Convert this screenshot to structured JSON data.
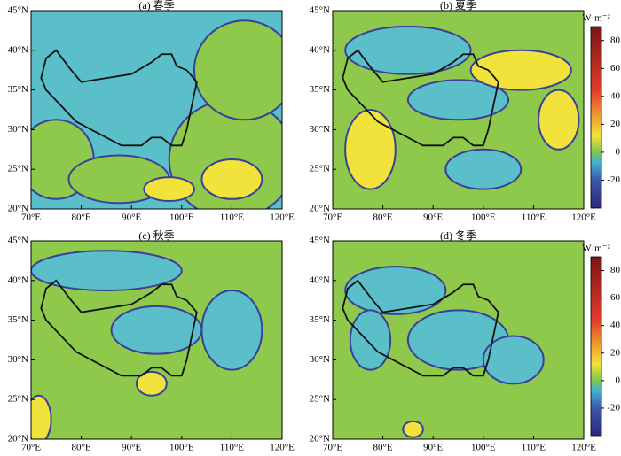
{
  "panels": [
    {
      "title": "(a) 春季"
    },
    {
      "title": "(b) 夏季"
    },
    {
      "title": "(c) 秋季"
    },
    {
      "title": "(d) 冬季"
    }
  ],
  "lon_ticks": [
    {
      "value": 70,
      "label": "70°E"
    },
    {
      "value": 80,
      "label": "80°E"
    },
    {
      "value": 90,
      "label": "90°E"
    },
    {
      "value": 100,
      "label": "100°E"
    },
    {
      "value": 110,
      "label": "110°E"
    },
    {
      "value": 120,
      "label": "120°E"
    }
  ],
  "lat_ticks": [
    {
      "value": 20,
      "label": "20°N"
    },
    {
      "value": 25,
      "label": "25°N"
    },
    {
      "value": 30,
      "label": "30°N"
    },
    {
      "value": 35,
      "label": "35°N"
    },
    {
      "value": 40,
      "label": "40°N"
    },
    {
      "value": 45,
      "label": "45°N"
    }
  ],
  "colorbars": [
    {
      "unit": "W·m⁻²",
      "lim": [
        -40,
        90
      ],
      "ticks": [
        -20,
        0,
        20,
        40,
        60,
        80
      ]
    },
    {
      "unit": "W·m⁻²",
      "lim": [
        -40,
        90
      ],
      "ticks": [
        -20,
        0,
        20,
        40,
        60,
        80
      ]
    }
  ]
}
